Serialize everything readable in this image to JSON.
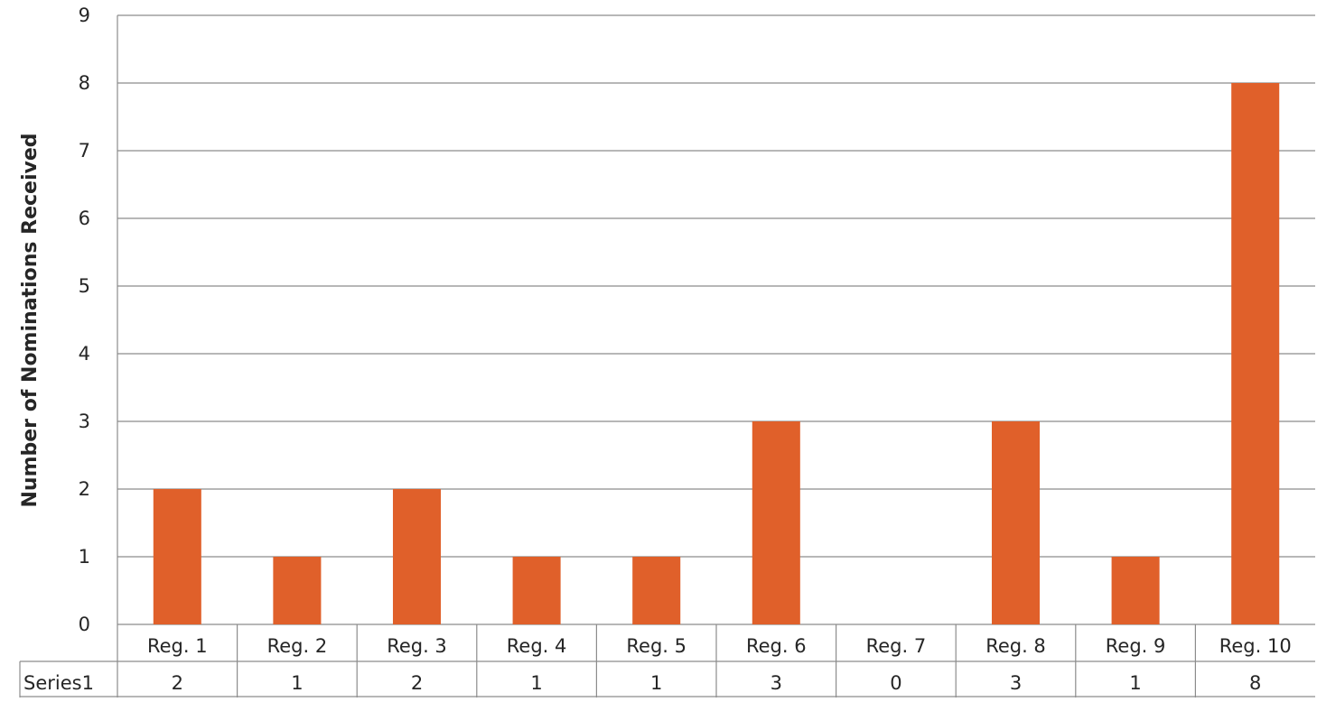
{
  "chart_data": {
    "type": "bar",
    "categories": [
      "Reg. 1",
      "Reg. 2",
      "Reg. 3",
      "Reg. 4",
      "Reg. 5",
      "Reg. 6",
      "Reg. 7",
      "Reg. 8",
      "Reg. 9",
      "Reg. 10"
    ],
    "series": [
      {
        "name": "Series1",
        "values": [
          2,
          1,
          2,
          1,
          1,
          3,
          0,
          3,
          1,
          8
        ],
        "color": "#e0602a"
      }
    ],
    "ylabel": "Number of Nominations Received",
    "xlabel": "",
    "ylim": [
      0,
      9
    ],
    "yticks": [
      0,
      1,
      2,
      3,
      4,
      5,
      6,
      7,
      8,
      9
    ],
    "grid": true,
    "data_table": true
  }
}
